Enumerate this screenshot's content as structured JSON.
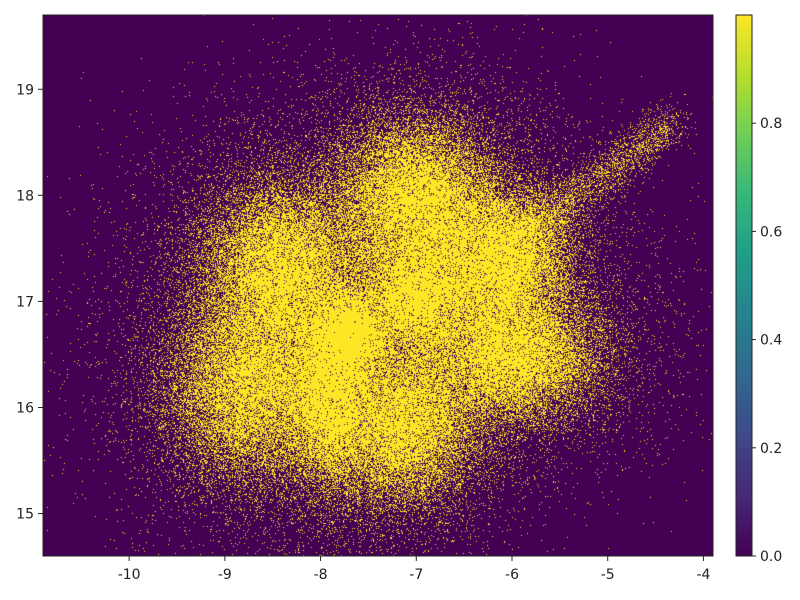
{
  "chart_data": {
    "type": "heatmap",
    "title": "",
    "xlabel": "",
    "ylabel": "",
    "xlim": [
      -10.9,
      -3.9
    ],
    "ylim": [
      14.6,
      19.7
    ],
    "x_ticks": [
      -10,
      -9,
      -8,
      -7,
      -6,
      -5,
      -4
    ],
    "x_tick_labels": [
      "-10",
      "-9",
      "-8",
      "-7",
      "-6",
      "-5",
      "-4"
    ],
    "y_ticks": [
      15,
      16,
      17,
      18,
      19
    ],
    "y_tick_labels": [
      "15",
      "16",
      "17",
      "18",
      "19"
    ],
    "colorbar": {
      "colormap": "viridis",
      "range": [
        0.0,
        1.0
      ],
      "ticks": [
        0.0,
        0.2,
        0.4,
        0.6,
        0.8
      ],
      "tick_labels": [
        "0.0",
        "0.2",
        "0.4",
        "0.6",
        "0.8"
      ]
    },
    "background_color": "#440154",
    "foreground_color": "#fde725",
    "grid": false,
    "clusters": [
      {
        "cx": -8.4,
        "cy": 17.3,
        "sx": 0.42,
        "sy": 0.42,
        "weight": 1.0
      },
      {
        "cx": -8.7,
        "cy": 16.2,
        "sx": 0.45,
        "sy": 0.45,
        "weight": 1.0
      },
      {
        "cx": -7.0,
        "cy": 17.95,
        "sx": 0.42,
        "sy": 0.38,
        "weight": 1.0
      },
      {
        "cx": -6.1,
        "cy": 17.4,
        "sx": 0.35,
        "sy": 0.33,
        "weight": 0.8
      },
      {
        "cx": -6.0,
        "cy": 16.5,
        "sx": 0.45,
        "sy": 0.32,
        "weight": 0.9
      },
      {
        "cx": -7.0,
        "cy": 17.05,
        "sx": 0.3,
        "sy": 0.28,
        "weight": 0.6
      },
      {
        "cx": -7.15,
        "cy": 15.85,
        "sx": 0.4,
        "sy": 0.38,
        "weight": 0.9
      },
      {
        "cx": -7.9,
        "cy": 16.1,
        "sx": 0.2,
        "sy": 0.4,
        "weight": 0.5
      },
      {
        "cx": -7.7,
        "cy": 16.7,
        "sx": 0.2,
        "sy": 0.2,
        "weight": 0.4
      }
    ]
  }
}
